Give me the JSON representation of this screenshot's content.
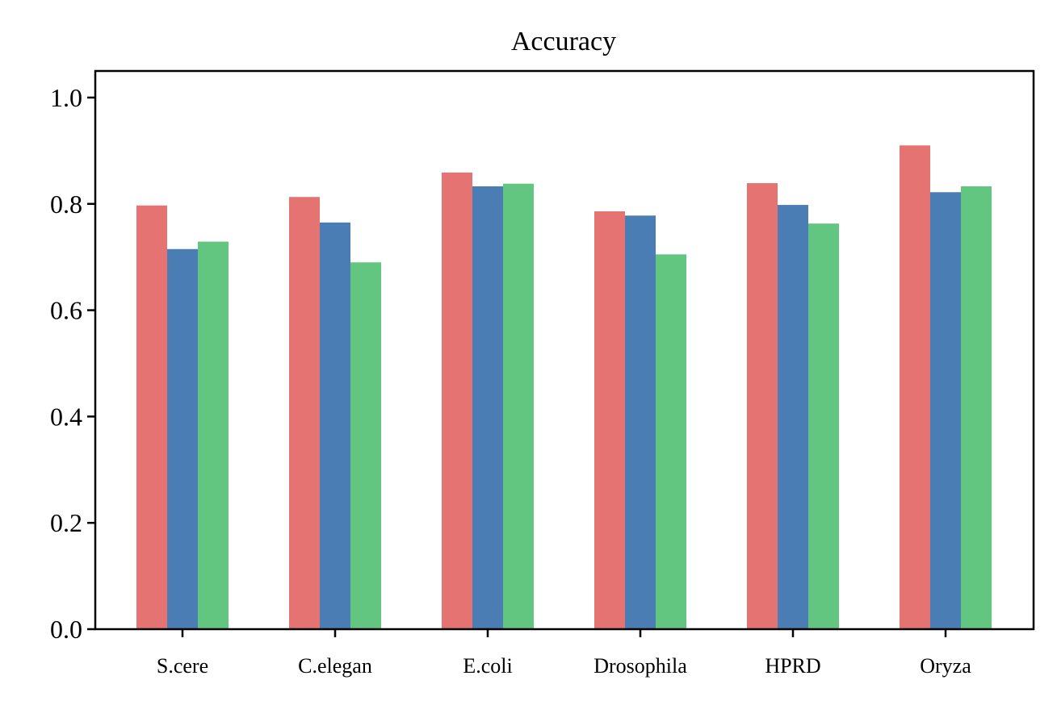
{
  "chart_data": {
    "type": "bar",
    "title": "Accuracy",
    "xlabel": "",
    "ylabel": "",
    "categories": [
      "S.cere",
      "C.elegan",
      "E.coli",
      "Drosophila",
      "HPRD",
      "Oryza"
    ],
    "series": [
      {
        "color": "#e47371",
        "values": [
          0.797,
          0.813,
          0.859,
          0.786,
          0.839,
          0.91
        ]
      },
      {
        "color": "#4a7db3",
        "values": [
          0.715,
          0.765,
          0.833,
          0.778,
          0.798,
          0.822
        ]
      },
      {
        "color": "#62c680",
        "values": [
          0.729,
          0.69,
          0.838,
          0.705,
          0.763,
          0.833
        ]
      }
    ],
    "ylim": [
      0,
      1.05
    ],
    "yticks": [
      "0.0",
      "0.2",
      "0.4",
      "0.6",
      "0.8",
      "1.0"
    ],
    "grid": false
  }
}
